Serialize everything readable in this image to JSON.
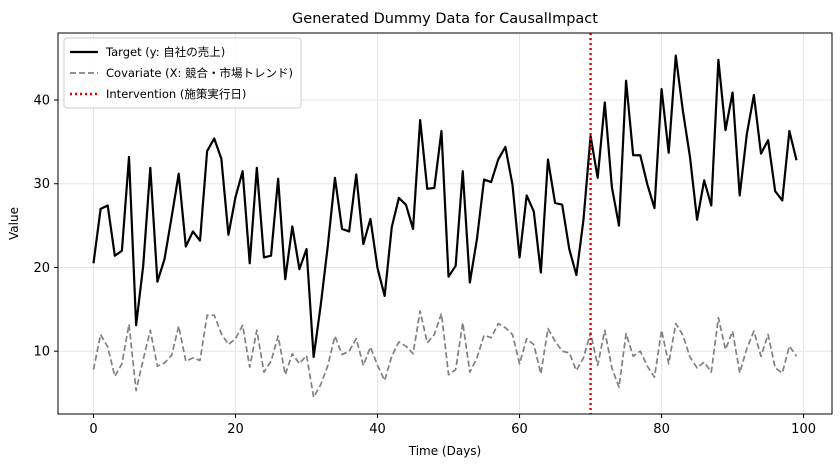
{
  "chart_data": {
    "type": "line",
    "title": "Generated Dummy Data for CausalImpact",
    "xlabel": "Time (Days)",
    "ylabel": "Value",
    "xlim": [
      -5,
      104
    ],
    "ylim": [
      2.5,
      48
    ],
    "xticks": [
      0,
      20,
      40,
      60,
      80,
      100
    ],
    "yticks": [
      10,
      20,
      30,
      40
    ],
    "grid": true,
    "legend_position": "top-left",
    "intervention_x": 70,
    "series": [
      {
        "name": "Target (y: 自社の売上)",
        "color": "#000000",
        "style": "solid",
        "x": [
          0,
          1,
          2,
          3,
          4,
          5,
          6,
          7,
          8,
          9,
          10,
          11,
          12,
          13,
          14,
          15,
          16,
          17,
          18,
          19,
          20,
          21,
          22,
          23,
          24,
          25,
          26,
          27,
          28,
          29,
          30,
          31,
          32,
          33,
          34,
          35,
          36,
          37,
          38,
          39,
          40,
          41,
          42,
          43,
          44,
          45,
          46,
          47,
          48,
          49,
          50,
          51,
          52,
          53,
          54,
          55,
          56,
          57,
          58,
          59,
          60,
          61,
          62,
          63,
          64,
          65,
          66,
          67,
          68,
          69,
          70,
          71,
          72,
          73,
          74,
          75,
          76,
          77,
          78,
          79,
          80,
          81,
          82,
          83,
          84,
          85,
          86,
          87,
          88,
          89,
          90,
          91,
          92,
          93,
          94,
          95,
          96,
          97,
          98,
          99
        ],
        "values": [
          20.5,
          27.0,
          27.4,
          21.4,
          22.0,
          33.2,
          13.1,
          20.2,
          31.9,
          18.3,
          21.0,
          26.0,
          31.2,
          22.5,
          24.3,
          23.2,
          33.9,
          35.4,
          33.0,
          23.9,
          28.4,
          31.5,
          20.5,
          31.9,
          21.2,
          21.4,
          30.6,
          18.6,
          24.9,
          19.8,
          22.2,
          9.3,
          15.5,
          22.6,
          30.7,
          24.6,
          24.3,
          31.1,
          22.8,
          25.8,
          19.9,
          16.6,
          24.8,
          28.3,
          27.5,
          24.6,
          37.6,
          29.4,
          29.5,
          36.3,
          18.9,
          20.2,
          31.5,
          18.2,
          23.4,
          30.5,
          30.2,
          32.9,
          34.4,
          29.9,
          21.2,
          28.6,
          26.7,
          19.4,
          32.9,
          27.7,
          27.5,
          22.2,
          19.1,
          25.7,
          35.7,
          30.7,
          39.7,
          29.6,
          25.0,
          42.3,
          33.4,
          33.4,
          29.9,
          27.1,
          41.3,
          33.7,
          45.3,
          38.7,
          33.2,
          25.7,
          30.4,
          27.4,
          44.8,
          36.4,
          40.9,
          28.6,
          35.9,
          40.6,
          33.6,
          35.2,
          29.1,
          28.0,
          36.3,
          32.8
        ]
      },
      {
        "name": "Covariate (X: 競合・市場トレンド)",
        "color": "#808080",
        "style": "dashed",
        "x": [
          0,
          1,
          2,
          3,
          4,
          5,
          6,
          7,
          8,
          9,
          10,
          11,
          12,
          13,
          14,
          15,
          16,
          17,
          18,
          19,
          20,
          21,
          22,
          23,
          24,
          25,
          26,
          27,
          28,
          29,
          30,
          31,
          32,
          33,
          34,
          35,
          36,
          37,
          38,
          39,
          40,
          41,
          42,
          43,
          44,
          45,
          46,
          47,
          48,
          49,
          50,
          51,
          52,
          53,
          54,
          55,
          56,
          57,
          58,
          59,
          60,
          61,
          62,
          63,
          64,
          65,
          66,
          67,
          68,
          69,
          70,
          71,
          72,
          73,
          74,
          75,
          76,
          77,
          78,
          79,
          80,
          81,
          82,
          83,
          84,
          85,
          86,
          87,
          88,
          89,
          90,
          91,
          92,
          93,
          94,
          95,
          96,
          97,
          98,
          99
        ],
        "values": [
          7.8,
          12.0,
          10.5,
          7.0,
          8.5,
          13.2,
          5.3,
          9.0,
          12.5,
          8.2,
          8.6,
          9.5,
          13.0,
          8.8,
          9.2,
          8.9,
          14.3,
          14.3,
          12.1,
          10.8,
          11.5,
          13.1,
          8.1,
          12.5,
          7.5,
          8.8,
          11.8,
          7.2,
          9.7,
          8.5,
          9.5,
          4.5,
          6.0,
          8.3,
          11.8,
          9.6,
          10.0,
          11.5,
          8.3,
          10.5,
          8.3,
          6.5,
          9.4,
          11.1,
          10.6,
          9.7,
          14.8,
          11.0,
          12.0,
          14.5,
          7.2,
          7.8,
          13.4,
          7.5,
          9.2,
          11.9,
          11.6,
          13.3,
          12.8,
          12.0,
          8.5,
          11.5,
          10.8,
          7.3,
          12.7,
          11.2,
          10.0,
          9.8,
          7.7,
          9.2,
          12.2,
          8.3,
          12.5,
          8.0,
          5.7,
          12.1,
          9.4,
          10.0,
          8.2,
          6.9,
          12.5,
          8.5,
          13.3,
          11.9,
          9.3,
          8.0,
          8.7,
          7.5,
          14.0,
          10.2,
          12.4,
          7.4,
          10.3,
          12.4,
          9.4,
          12.0,
          8.0,
          7.4,
          10.6,
          9.4
        ]
      }
    ],
    "legend": [
      {
        "label": "Target (y: 自社の売上)",
        "color": "#000000",
        "style": "solid"
      },
      {
        "label": "Covariate (X: 競合・市場トレンド)",
        "color": "#808080",
        "style": "dashed"
      },
      {
        "label": "Intervention (施策実行日)",
        "color": "#e00000",
        "style": "dotted"
      }
    ]
  }
}
